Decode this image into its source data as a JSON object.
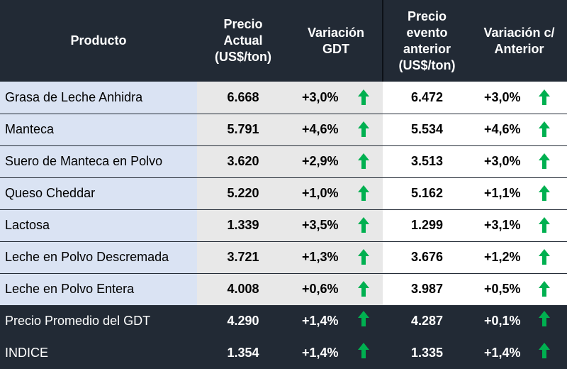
{
  "header": [
    [
      "Producto"
    ],
    [
      "Precio",
      "Actual",
      "(US$/ton)"
    ],
    [
      "Variación",
      "GDT"
    ],
    [
      "Precio",
      "evento",
      "anterior",
      "(US$/ton)"
    ],
    [
      "Variación c/",
      "Anterior"
    ]
  ],
  "rows": [
    [
      "Grasa de Leche Anhidra",
      "6.668",
      "+3,0%",
      "6.472",
      "+3,0%"
    ],
    [
      "Manteca",
      "5.791",
      "+4,6%",
      "5.534",
      "+4,6%"
    ],
    [
      "Suero de Manteca en Polvo",
      "3.620",
      "+2,9%",
      "3.513",
      "+3,0%"
    ],
    [
      "Queso Cheddar",
      "5.220",
      "+1,0%",
      "5.162",
      "+1,1%"
    ],
    [
      "Lactosa",
      "1.339",
      "+3,5%",
      "1.299",
      "+3,1%"
    ],
    [
      "Leche en Polvo Descremada",
      "3.721",
      "+1,3%",
      "3.676",
      "+1,2%"
    ],
    [
      "Leche en Polvo Entera",
      "4.008",
      "+0,6%",
      "3.987",
      "+0,5%"
    ],
    [
      "Precio Promedio del GDT",
      "4.290",
      "+1,4%",
      "4.287",
      "+0,1%"
    ],
    [
      "INDICE",
      "1.354",
      "+1,4%",
      "1.335",
      "+1,4%"
    ]
  ]
}
